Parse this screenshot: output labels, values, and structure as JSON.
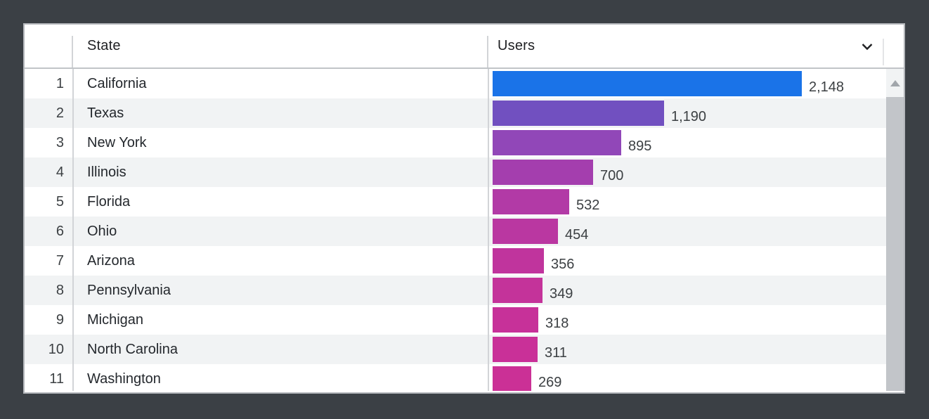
{
  "colors": {
    "background": "#3b4045",
    "card_border": "#b4b7bb",
    "row_stripe": "#f1f3f4",
    "divider": "#d2d4d7",
    "text_primary": "#202124",
    "text_secondary": "#3c4043",
    "scroll_thumb": "#c2c5c9"
  },
  "header": {
    "state_label": "State",
    "users_label": "Users",
    "chevron_icon": "chevron-down-icon"
  },
  "table": {
    "max_users": 2148,
    "rows": [
      {
        "rank": "1",
        "state": "California",
        "users": 2148,
        "users_display": "2,148",
        "bar_color": "#1a73e8"
      },
      {
        "rank": "2",
        "state": "Texas",
        "users": 1190,
        "users_display": "1,190",
        "bar_color": "#7150c0"
      },
      {
        "rank": "3",
        "state": "New York",
        "users": 895,
        "users_display": "895",
        "bar_color": "#9147b8"
      },
      {
        "rank": "4",
        "state": "Illinois",
        "users": 700,
        "users_display": "700",
        "bar_color": "#a43eae"
      },
      {
        "rank": "5",
        "state": "Florida",
        "users": 532,
        "users_display": "532",
        "bar_color": "#b23aa6"
      },
      {
        "rank": "6",
        "state": "Ohio",
        "users": 454,
        "users_display": "454",
        "bar_color": "#ba37a1"
      },
      {
        "rank": "7",
        "state": "Arizona",
        "users": 356,
        "users_display": "356",
        "bar_color": "#c0349d"
      },
      {
        "rank": "8",
        "state": "Pennsylvania",
        "users": 349,
        "users_display": "349",
        "bar_color": "#c4339a"
      },
      {
        "rank": "9",
        "state": "Michigan",
        "users": 318,
        "users_display": "318",
        "bar_color": "#c73199"
      },
      {
        "rank": "10",
        "state": "North Carolina",
        "users": 311,
        "users_display": "311",
        "bar_color": "#c93098"
      },
      {
        "rank": "11",
        "state": "Washington",
        "users": 269,
        "users_display": "269",
        "bar_color": "#cb3096"
      }
    ]
  },
  "chart_data": {
    "type": "bar",
    "orientation": "horizontal",
    "categories": [
      "California",
      "Texas",
      "New York",
      "Illinois",
      "Florida",
      "Ohio",
      "Arizona",
      "Pennsylvania",
      "Michigan",
      "North Carolina",
      "Washington"
    ],
    "values": [
      2148,
      1190,
      895,
      700,
      532,
      454,
      356,
      349,
      318,
      311,
      269
    ],
    "value_labels": [
      "2,148",
      "1,190",
      "895",
      "700",
      "532",
      "454",
      "356",
      "349",
      "318",
      "311",
      "269"
    ],
    "title": "",
    "xlabel": "Users",
    "ylabel": "State",
    "xlim": [
      0,
      2148
    ],
    "grid": false,
    "legend": false,
    "bar_colors": [
      "#1a73e8",
      "#7150c0",
      "#9147b8",
      "#a43eae",
      "#b23aa6",
      "#ba37a1",
      "#c0349d",
      "#c4339a",
      "#c73199",
      "#c93098",
      "#cb3096"
    ]
  }
}
